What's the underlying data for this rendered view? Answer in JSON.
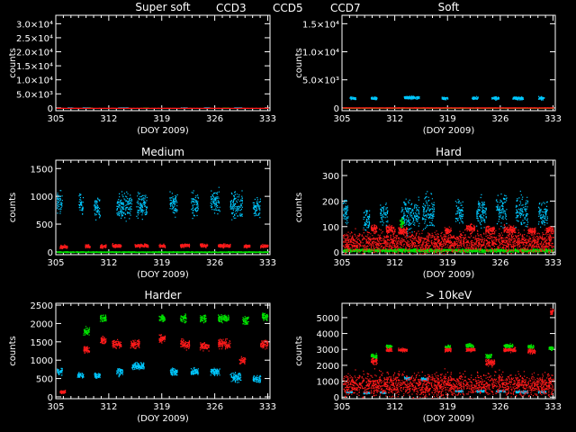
{
  "figure": {
    "legend": [
      {
        "name": "CCD3",
        "color": "#00c8ff"
      },
      {
        "name": "CCD5",
        "color": "#00e000"
      },
      {
        "name": "CCD7",
        "color": "#ff1a1a"
      }
    ],
    "background": "#000000",
    "foreground": "#ffffff"
  },
  "chart_data": [
    {
      "id": "super-soft",
      "type": "scatter",
      "title": "Super soft",
      "xlabel": "(DOY 2009)",
      "ylabel": "counts",
      "xlim": [
        305,
        333.3
      ],
      "ylim": [
        -1000,
        33000
      ],
      "xticks": [
        305,
        312,
        319,
        326,
        333
      ],
      "xtick_labels": [
        "305",
        "312",
        "319",
        "326",
        "333"
      ],
      "yticks": [
        0,
        5000,
        10000,
        15000,
        20000,
        25000,
        30000
      ],
      "ytick_labels": [
        "0",
        "5.0×10³",
        "1.0×10⁴",
        "1.5×10⁴",
        "2.0×10⁴",
        "2.5×10⁴",
        "3.0×10⁴"
      ],
      "series": [
        {
          "name": "CCD3",
          "segments": [
            [
              306.5,
              307.2,
              150,
              40
            ],
            [
              308.5,
              309.5,
              150,
              40
            ],
            [
              313.2,
              314.5,
              150,
              40
            ],
            [
              321.5,
              322.3,
              150,
              40
            ],
            [
              324.5,
              325.3,
              150,
              40
            ],
            [
              328.5,
              329.5,
              150,
              40
            ]
          ]
        },
        {
          "name": "CCD5",
          "segments": [
            [
              309.2,
              309.8,
              100,
              30
            ],
            [
              316.5,
              317.2,
              100,
              30
            ],
            [
              327.0,
              327.8,
              100,
              30
            ]
          ]
        },
        {
          "name": "CCD7",
          "segments": [
            [
              305.1,
              333,
              50,
              30
            ]
          ]
        }
      ]
    },
    {
      "id": "soft",
      "type": "scatter",
      "title": "Soft",
      "xlabel": "(DOY 2009)",
      "ylabel": "counts",
      "xlim": [
        305,
        333.3
      ],
      "ylim": [
        -500,
        16500
      ],
      "xticks": [
        305,
        312,
        319,
        326,
        333
      ],
      "xtick_labels": [
        "305",
        "312",
        "319",
        "326",
        "333"
      ],
      "yticks": [
        0,
        5000,
        10000,
        15000
      ],
      "ytick_labels": [
        "0",
        "5.0×10³",
        "1.0×10⁴",
        "1.5×10⁴"
      ],
      "series": [
        {
          "name": "CCD3",
          "segments": [
            [
              306.0,
              306.8,
              1800,
              250
            ],
            [
              308.8,
              309.6,
              1800,
              250
            ],
            [
              313.2,
              315.2,
              1900,
              250
            ],
            [
              318.2,
              319.0,
              1800,
              250
            ],
            [
              322.2,
              323.0,
              1800,
              250
            ],
            [
              324.8,
              325.8,
              1800,
              250
            ],
            [
              327.6,
              329.0,
              1800,
              250
            ],
            [
              331.0,
              331.8,
              1800,
              250
            ]
          ]
        },
        {
          "name": "CCD5",
          "segments": [
            [
              305.1,
              333,
              40,
              30
            ]
          ]
        },
        {
          "name": "CCD7",
          "segments": [
            [
              305.1,
              333,
              80,
              40
            ]
          ]
        }
      ]
    },
    {
      "id": "medium",
      "type": "scatter",
      "title": "Medium",
      "xlabel": "(DOY 2009)",
      "ylabel": "counts",
      "xlim": [
        305,
        333.3
      ],
      "ylim": [
        -50,
        1650
      ],
      "xticks": [
        305,
        312,
        319,
        326,
        333
      ],
      "xtick_labels": [
        "305",
        "312",
        "319",
        "326",
        "333"
      ],
      "yticks": [
        0,
        500,
        1000,
        1500
      ],
      "ytick_labels": [
        "0",
        "500",
        "1000",
        "1500"
      ],
      "series": [
        {
          "name": "CCD3",
          "segments": [
            [
              305.1,
              305.8,
              900,
              180
            ],
            [
              308.0,
              308.6,
              850,
              180
            ],
            [
              310.0,
              310.8,
              800,
              200
            ],
            [
              313.0,
              315.0,
              850,
              220
            ],
            [
              315.6,
              317.0,
              850,
              220
            ],
            [
              320.0,
              321.0,
              850,
              200
            ],
            [
              322.8,
              323.8,
              850,
              200
            ],
            [
              325.4,
              326.6,
              900,
              220
            ],
            [
              328.0,
              329.6,
              850,
              220
            ],
            [
              331.0,
              332.0,
              800,
              200
            ]
          ]
        },
        {
          "name": "CCD5",
          "segments": [
            [
              305.1,
              333,
              5,
              8
            ]
          ]
        },
        {
          "name": "CCD7",
          "segments": [
            [
              305.5,
              306.5,
              100,
              30
            ],
            [
              308.8,
              309.5,
              110,
              30
            ],
            [
              310.8,
              311.6,
              110,
              30
            ],
            [
              312.4,
              313.6,
              120,
              30
            ],
            [
              315.4,
              317.2,
              120,
              30
            ],
            [
              318.6,
              319.4,
              110,
              30
            ],
            [
              321.4,
              322.6,
              120,
              30
            ],
            [
              324.0,
              325.0,
              120,
              30
            ],
            [
              326.4,
              328.0,
              120,
              30
            ],
            [
              329.8,
              330.6,
              110,
              30
            ],
            [
              332.0,
              333.0,
              110,
              30
            ]
          ]
        }
      ]
    },
    {
      "id": "hard",
      "type": "scatter",
      "title": "Hard",
      "xlabel": "(DOY 2009)",
      "ylabel": "counts",
      "xlim": [
        305,
        333.3
      ],
      "ylim": [
        -10,
        360
      ],
      "xticks": [
        305,
        312,
        319,
        326,
        333
      ],
      "xtick_labels": [
        "305",
        "312",
        "319",
        "326",
        "333"
      ],
      "yticks": [
        0,
        100,
        200,
        300
      ],
      "ytick_labels": [
        "0",
        "100",
        "200",
        "300"
      ],
      "series": [
        {
          "name": "CCD3",
          "segments": [
            [
              305.1,
              305.8,
              160,
              40
            ],
            [
              307.8,
              308.6,
              130,
              40
            ],
            [
              310.0,
              311.0,
              150,
              50
            ],
            [
              312.8,
              315.2,
              150,
              60
            ],
            [
              315.6,
              317.2,
              160,
              60
            ],
            [
              320.0,
              321.0,
              160,
              50
            ],
            [
              322.8,
              324.2,
              160,
              60
            ],
            [
              325.4,
              326.8,
              170,
              60
            ],
            [
              328.0,
              329.6,
              160,
              60
            ],
            [
              331.0,
              332.2,
              150,
              50
            ]
          ]
        },
        {
          "name": "CCD5",
          "segments": [
            [
              312.6,
              313.2,
              115,
              20
            ],
            [
              305.1,
              333,
              8,
              6
            ]
          ]
        },
        {
          "name": "CCD7",
          "segments": [
            [
              308.8,
              309.6,
              95,
              15
            ],
            [
              310.8,
              312.0,
              90,
              15
            ],
            [
              312.4,
              313.6,
              85,
              15
            ],
            [
              318.6,
              319.4,
              85,
              12
            ],
            [
              321.4,
              322.6,
              95,
              15
            ],
            [
              324.0,
              325.2,
              90,
              15
            ],
            [
              326.4,
              328.0,
              90,
              15
            ],
            [
              329.6,
              330.6,
              85,
              12
            ],
            [
              332.0,
              333.0,
              88,
              12
            ],
            [
              305.1,
              333,
              40,
              40
            ]
          ]
        }
      ]
    },
    {
      "id": "harder",
      "type": "scatter",
      "title": "Harder",
      "xlabel": "(DOY 2009)",
      "ylabel": "counts",
      "xlim": [
        305,
        333.3
      ],
      "ylim": [
        -50,
        2550
      ],
      "xticks": [
        305,
        312,
        319,
        326,
        333
      ],
      "xtick_labels": [
        "305",
        "312",
        "319",
        "326",
        "333"
      ],
      "yticks": [
        0,
        500,
        1000,
        1500,
        2000,
        2500
      ],
      "ytick_labels": [
        "0",
        "500",
        "1000",
        "1500",
        "2000",
        "2500"
      ],
      "series": [
        {
          "name": "CCD3",
          "segments": [
            [
              305.1,
              305.8,
              700,
              100
            ],
            [
              307.8,
              308.6,
              600,
              80
            ],
            [
              310.0,
              310.8,
              600,
              80
            ],
            [
              313.0,
              313.8,
              700,
              100
            ],
            [
              315.0,
              316.6,
              850,
              80
            ],
            [
              320.0,
              321.0,
              700,
              100
            ],
            [
              322.8,
              323.8,
              700,
              100
            ],
            [
              325.4,
              326.6,
              700,
              100
            ],
            [
              328.0,
              329.4,
              550,
              120
            ],
            [
              331.0,
              332.0,
              500,
              100
            ]
          ]
        },
        {
          "name": "CCD5",
          "segments": [
            [
              308.6,
              309.4,
              1800,
              100
            ],
            [
              310.8,
              311.6,
              2150,
              100
            ],
            [
              318.6,
              319.4,
              2150,
              100
            ],
            [
              321.4,
              322.2,
              2150,
              100
            ],
            [
              324.0,
              324.8,
              2150,
              100
            ],
            [
              326.4,
              327.8,
              2150,
              100
            ],
            [
              329.6,
              330.4,
              2100,
              100
            ],
            [
              332.2,
              333.0,
              2200,
              100
            ]
          ]
        },
        {
          "name": "CCD7",
          "segments": [
            [
              305.5,
              306.3,
              150,
              40
            ],
            [
              308.6,
              309.4,
              1300,
              100
            ],
            [
              310.8,
              311.6,
              1550,
              100
            ],
            [
              312.4,
              313.6,
              1450,
              100
            ],
            [
              314.8,
              316.0,
              1450,
              120
            ],
            [
              318.6,
              319.4,
              1600,
              100
            ],
            [
              321.4,
              322.6,
              1450,
              120
            ],
            [
              324.0,
              325.2,
              1400,
              120
            ],
            [
              326.4,
              328.0,
              1450,
              120
            ],
            [
              329.2,
              330.0,
              1000,
              100
            ],
            [
              332.0,
              333.0,
              1450,
              100
            ]
          ]
        }
      ]
    },
    {
      "id": "gt-10kev",
      "type": "scatter",
      "title": "> 10keV",
      "xlabel": "(DOY 2009)",
      "ylabel": "counts",
      "xlim": [
        305,
        333.3
      ],
      "ylim": [
        -100,
        5900
      ],
      "xticks": [
        305,
        312,
        319,
        326,
        333
      ],
      "xtick_labels": [
        "305",
        "312",
        "319",
        "326",
        "333"
      ],
      "yticks": [
        0,
        1000,
        2000,
        3000,
        4000,
        5000
      ],
      "ytick_labels": [
        "0",
        "1000",
        "2000",
        "3000",
        "4000",
        "5000"
      ],
      "series": [
        {
          "name": "CCD3",
          "segments": [
            [
              305.5,
              306.3,
              350,
              60
            ],
            [
              307.8,
              308.6,
              300,
              60
            ],
            [
              310.0,
              310.8,
              300,
              60
            ],
            [
              313.2,
              314.0,
              1200,
              80
            ],
            [
              315.4,
              316.4,
              1150,
              80
            ],
            [
              320.0,
              321.0,
              400,
              60
            ],
            [
              322.8,
              323.8,
              400,
              60
            ],
            [
              325.4,
              326.6,
              400,
              60
            ],
            [
              328.0,
              329.6,
              350,
              80
            ],
            [
              331.0,
              332.0,
              350,
              60
            ]
          ]
        },
        {
          "name": "CCD5",
          "segments": [
            [
              308.8,
              309.6,
              2600,
              150
            ],
            [
              310.8,
              311.6,
              3200,
              120
            ],
            [
              318.6,
              319.4,
              3200,
              120
            ],
            [
              321.4,
              322.4,
              3250,
              120
            ],
            [
              324.0,
              324.8,
              2600,
              150
            ],
            [
              326.4,
              327.6,
              3250,
              120
            ],
            [
              329.6,
              330.4,
              3200,
              120
            ],
            [
              332.4,
              333.0,
              3100,
              100
            ]
          ]
        },
        {
          "name": "CCD7",
          "segments": [
            [
              308.8,
              309.6,
              2300,
              200
            ],
            [
              310.8,
              311.6,
              3000,
              120
            ],
            [
              312.4,
              313.6,
              3000,
              100
            ],
            [
              318.6,
              319.4,
              3000,
              100
            ],
            [
              321.4,
              322.6,
              3000,
              100
            ],
            [
              324.0,
              325.2,
              2200,
              200
            ],
            [
              326.4,
              328.0,
              3000,
              120
            ],
            [
              329.6,
              330.6,
              2900,
              150
            ],
            [
              332.6,
              333.0,
              5400,
              200
            ],
            [
              305.1,
              333,
              800,
              700
            ]
          ]
        }
      ]
    }
  ]
}
